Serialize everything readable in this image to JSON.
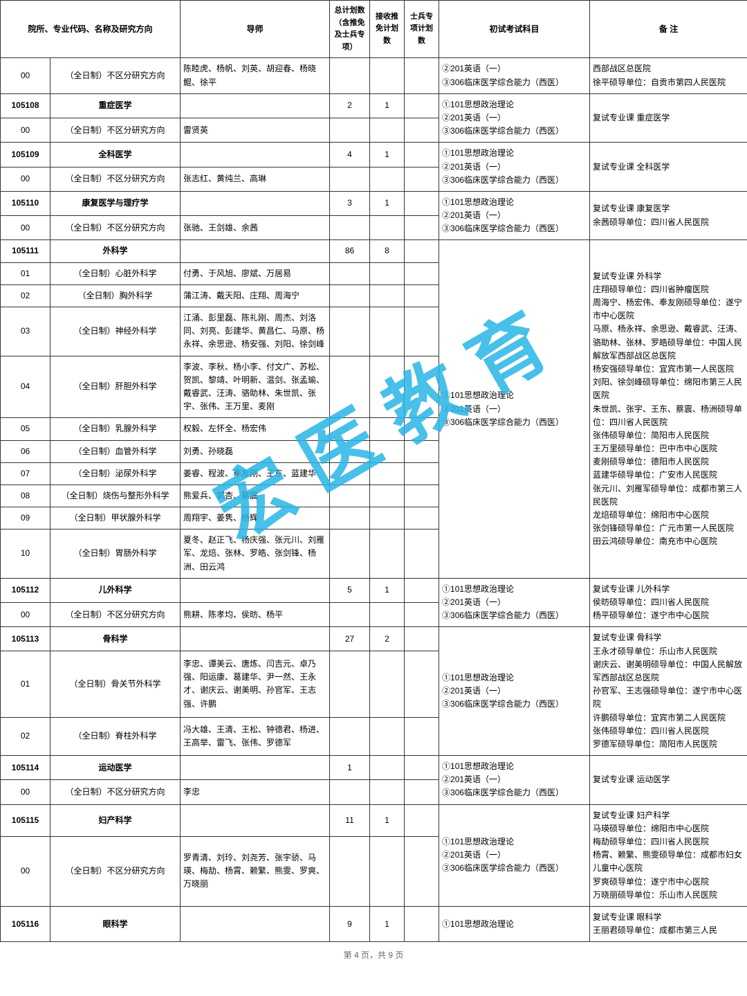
{
  "columns": {
    "c1": "院所、专业代码、名称及研究方向",
    "c2": "导师",
    "c3": "总计划数（含推免及士兵专项）",
    "c4": "接收推免计划数",
    "c5": "士兵专项计划数",
    "c6": "初试考试科目",
    "c7": "备  注"
  },
  "watermark": "宏医教育",
  "footer": "第 4 页，共 9 页",
  "exam_default": "①101思想政治理论\n②201英语（一）\n③306临床医学综合能力（西医）",
  "rows": [
    {
      "code": "00",
      "name": "（全日制）不区分研究方向",
      "teacher": "陈睦虎、杨帆、刘英、胡迎春、杨晓鲲、徐平",
      "plan": "",
      "tumian": "",
      "bing": "",
      "exam": "②201英语（一）\n③306临床医学综合能力（西医）",
      "note": "西部战区总医院\n徐平硕导单位：自贡市第四人民医院",
      "exam_rs": 1,
      "note_rs": 1
    },
    {
      "code": "105108",
      "name": "重症医学",
      "teacher": "",
      "plan": "2",
      "tumian": "1",
      "bing": "",
      "exam": "①101思想政治理论\n②201英语（一）\n③306临床医学综合能力（西医）",
      "note": "复试专业课 重症医学",
      "bold": true,
      "exam_rs": 2,
      "note_rs": 2
    },
    {
      "code": "00",
      "name": "（全日制）不区分研究方向",
      "teacher": "雷贤英",
      "plan": "",
      "tumian": "",
      "bing": ""
    },
    {
      "code": "105109",
      "name": "全科医学",
      "teacher": "",
      "plan": "4",
      "tumian": "1",
      "bing": "",
      "exam": "①101思想政治理论\n②201英语（一）\n③306临床医学综合能力（西医）",
      "note": "复试专业课 全科医学",
      "bold": true,
      "exam_rs": 2,
      "note_rs": 2
    },
    {
      "code": "00",
      "name": "（全日制）不区分研究方向",
      "teacher": "张志红、黄纯兰、高琳",
      "plan": "",
      "tumian": "",
      "bing": ""
    },
    {
      "code": "105110",
      "name": "康复医学与理疗学",
      "teacher": "",
      "plan": "3",
      "tumian": "1",
      "bing": "",
      "exam": "①101思想政治理论\n②201英语（一）\n③306临床医学综合能力（西医）",
      "note": "复试专业课 康复医学\n余茜硕导单位：四川省人民医院",
      "bold": true,
      "exam_rs": 2,
      "note_rs": 2
    },
    {
      "code": "00",
      "name": "（全日制）不区分研究方向",
      "teacher": "张驰、王剑雄、余茜",
      "plan": "",
      "tumian": "",
      "bing": ""
    },
    {
      "code": "105111",
      "name": "外科学",
      "teacher": "",
      "plan": "86",
      "tumian": "8",
      "bing": "",
      "exam": "①101思想政治理论\n②201英语（一）\n③306临床医学综合能力（西医）",
      "note": "复试专业课 外科学\n庄翔硕导单位：四川省肿瘤医院\n周海宁、杨宏伟、奉友刚硕导单位：遂宁市中心医院\n马原、杨永祥、余思逊、戴睿武、汪涛、骆助林、张林、罗皓硕导单位：中国人民解放军西部战区总医院\n杨安强硕导单位：宜宾市第一人民医院\n刘阳、徐剑峰硕导单位：绵阳市第三人民医院\n朱世凯、张宇、王东、蔡震、杨洲硕导单位：四川省人民医院\n张伟硕导单位：简阳市人民医院\n王万里硕导单位：巴中市中心医院\n麦刚硕导单位：德阳市人民医院\n蓝建华硕导单位：广安市人民医院\n张元川、刘雁军硕导单位：成都市第三人民医院\n龙焙硕导单位：绵阳市中心医院\n张剑锋硕导单位：广元市第一人民医院\n田云鸿硕导单位：南充市中心医院",
      "bold": true,
      "exam_rs": 11,
      "note_rs": 11
    },
    {
      "code": "01",
      "name": "（全日制）心脏外科学",
      "teacher": "付勇、于风旭、廖斌、万居易",
      "plan": "",
      "tumian": "",
      "bing": ""
    },
    {
      "code": "02",
      "name": "（全日制）胸外科学",
      "teacher": "蒲江涛、戴天阳、庄翔、周海宁",
      "plan": "",
      "tumian": "",
      "bing": ""
    },
    {
      "code": "03",
      "name": "（全日制）神经外科学",
      "teacher": "江涌、彭里磊、陈礼刚、周杰、刘洛同、刘亮、彭建华、黄昌仁、马原、杨永祥、余思逊、杨安强、刘阳、徐剑峰",
      "plan": "",
      "tumian": "",
      "bing": ""
    },
    {
      "code": "04",
      "name": "（全日制）肝胆外科学",
      "teacher": "李波、李秋、杨小李、付文广、苏松、贺凯、黎靖、叶明新、温剑、张孟瑜、戴睿武、汪涛、骆助林、朱世凯、张宇、张伟、王万里、麦刚",
      "plan": "",
      "tumian": "",
      "bing": ""
    },
    {
      "code": "05",
      "name": "（全日制）乳腺外科学",
      "teacher": "权毅、左怀全、杨宏伟",
      "plan": "",
      "tumian": "",
      "bing": ""
    },
    {
      "code": "06",
      "name": "（全日制）血管外科学",
      "teacher": "刘勇、孙晓磊",
      "plan": "",
      "tumian": "",
      "bing": ""
    },
    {
      "code": "07",
      "name": "（全日制）泌尿外科学",
      "teacher": "姜睿、程波、奉友刚、王东、蓝建华",
      "plan": "",
      "tumian": "",
      "bing": ""
    },
    {
      "code": "08",
      "name": "（全日制）烧伤与整形外科学",
      "teacher": "熊爱兵、郭杏、蔡震",
      "plan": "",
      "tumian": "",
      "bing": ""
    },
    {
      "code": "09",
      "name": "（全日制）甲状腺外科学",
      "teacher": "周翔宇、姜隽、杨辉",
      "plan": "",
      "tumian": "",
      "bing": ""
    },
    {
      "code": "10",
      "name": "（全日制）胃肠外科学",
      "teacher": "夏冬、赵正飞、杨庆强、张元川、刘雁军、龙焙、张林、罗皓、张剑锋、杨洲、田云鸿",
      "plan": "",
      "tumian": "",
      "bing": ""
    },
    {
      "code": "105112",
      "name": "儿外科学",
      "teacher": "",
      "plan": "5",
      "tumian": "1",
      "bing": "",
      "exam": "①101思想政治理论\n②201英语（一）\n③306临床医学综合能力（西医）",
      "note": "复试专业课 儿外科学\n侯昉硕导单位：四川省人民医院\n杨平硕导单位：遂宁市中心医院",
      "bold": true,
      "exam_rs": 2,
      "note_rs": 2
    },
    {
      "code": "00",
      "name": "（全日制）不区分研究方向",
      "teacher": "熊耕、陈孝均、侯昉、杨平",
      "plan": "",
      "tumian": "",
      "bing": ""
    },
    {
      "code": "105113",
      "name": "骨科学",
      "teacher": "",
      "plan": "27",
      "tumian": "2",
      "bing": "",
      "exam": "①101思想政治理论\n②201英语（一）\n③306临床医学综合能力（西医）",
      "note": "复试专业课 骨科学\n王永才硕导单位：乐山市人民医院\n谢庆云、谢美明硕导单位：中国人民解放军西部战区总医院\n孙官军、王志强硕导单位：遂宁市中心医院\n许鹏硕导单位：宜宾市第二人民医院\n张伟硕导单位：四川省人民医院\n罗德军硕导单位：简阳市人民医院",
      "bold": true,
      "exam_rs": 3,
      "note_rs": 3
    },
    {
      "code": "01",
      "name": "（全日制）骨关节外科学",
      "teacher": "李忠、谭美云、唐炼、闫吉元、卓乃强、阳运康、葛建华、尹一然、王永才、谢庆云、谢美明、孙官军、王志强、许鹏",
      "plan": "",
      "tumian": "",
      "bing": ""
    },
    {
      "code": "02",
      "name": "（全日制）脊柱外科学",
      "teacher": "冯大雄、王清、王松、钟德君、杨进、王高举、雷飞、张伟、罗德军",
      "plan": "",
      "tumian": "",
      "bing": ""
    },
    {
      "code": "105114",
      "name": "运动医学",
      "teacher": "",
      "plan": "1",
      "tumian": "",
      "bing": "",
      "exam": "①101思想政治理论\n②201英语（一）\n③306临床医学综合能力（西医）",
      "note": "复试专业课 运动医学",
      "bold": true,
      "exam_rs": 2,
      "note_rs": 2
    },
    {
      "code": "00",
      "name": "（全日制）不区分研究方向",
      "teacher": "李忠",
      "plan": "",
      "tumian": "",
      "bing": ""
    },
    {
      "code": "105115",
      "name": "妇产科学",
      "teacher": "",
      "plan": "11",
      "tumian": "1",
      "bing": "",
      "exam": "①101思想政治理论\n②201英语（一）\n③306临床医学综合能力（西医）",
      "note": "复试专业课 妇产科学\n马瑛硕导单位：绵阳市中心医院\n梅劼硕导单位：四川省人民医院\n杨霄、赖繁、熊雯硕导单位：成都市妇女儿童中心医院\n罗爽硕导单位：遂宁市中心医院\n万晓丽硕导单位：乐山市人民医院",
      "bold": true,
      "exam_rs": 2,
      "note_rs": 2
    },
    {
      "code": "00",
      "name": "（全日制）不区分研究方向",
      "teacher": "罗青清、刘玲、刘尧芳、张宇骄、马瑛、梅劼、杨霄、赖繁、熊雯、罗爽、万晓丽",
      "plan": "",
      "tumian": "",
      "bing": ""
    },
    {
      "code": "105116",
      "name": "眼科学",
      "teacher": "",
      "plan": "9",
      "tumian": "1",
      "bing": "",
      "exam": "①101思想政治理论",
      "note": "复试专业课 眼科学\n王丽君硕导单位：成都市第三人民",
      "bold": true,
      "exam_rs": 1,
      "note_rs": 1
    }
  ]
}
